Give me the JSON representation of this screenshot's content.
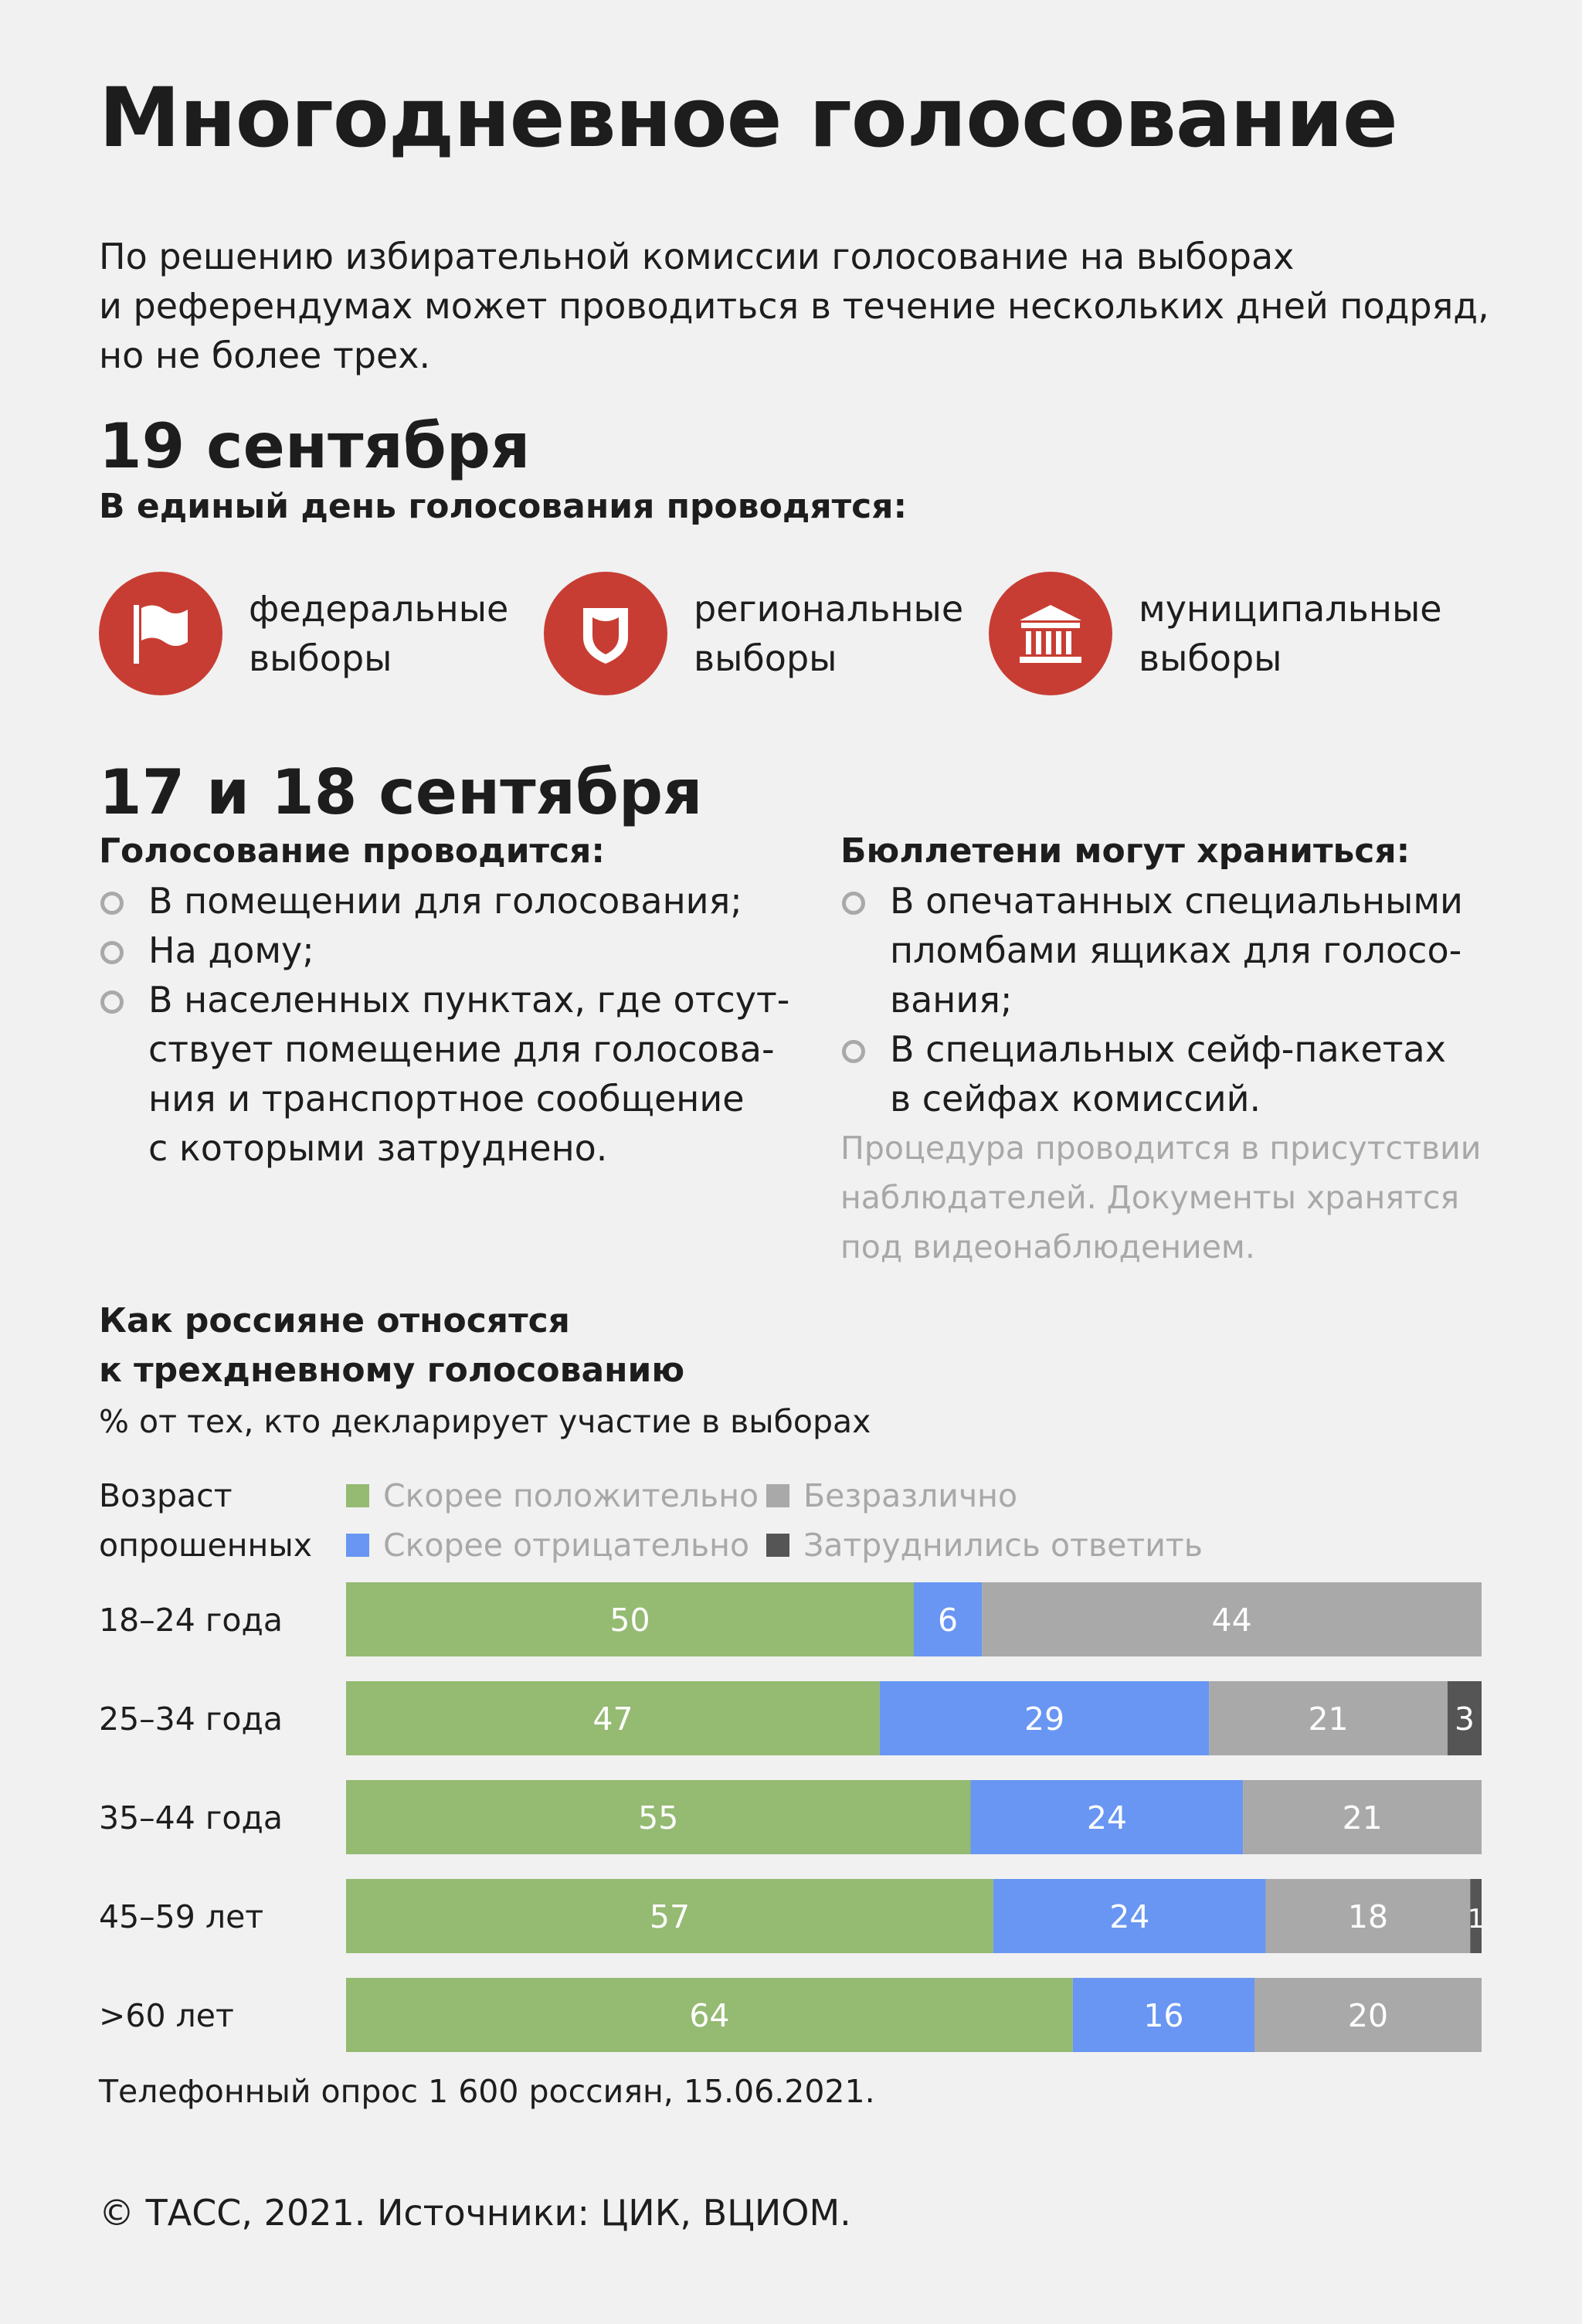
{
  "title": "Многодневное голосование",
  "intro": {
    "line1": "По решению избирательной комиссии голосование на выборах",
    "line2": "и референдумах может проводиться в течение нескольких дней подряд,",
    "line3": "но не более трех."
  },
  "day19": {
    "date": "19 сентября",
    "subtitle": "В единый день голосования проводятся:",
    "items": [
      {
        "icon": "flag-icon",
        "line1": "федеральные",
        "line2": "выборы"
      },
      {
        "icon": "shield-icon",
        "line1": "региональные",
        "line2": "выборы"
      },
      {
        "icon": "building-icon",
        "line1": "муниципальные",
        "line2": "выборы"
      }
    ]
  },
  "days17_18": {
    "date": "17 и 18 сентября",
    "voting": {
      "heading": "Голосование проводится:",
      "items": [
        [
          "В помещении для голосования;"
        ],
        [
          "На дому;"
        ],
        [
          "В населенных пунктах, где отсут-",
          "ствует помещение для голосова-",
          "ния и транспортное сообщение",
          "с которыми затруднено."
        ]
      ]
    },
    "storage": {
      "heading": "Бюллетени могут храниться:",
      "items": [
        [
          "В опечатанных специальными",
          "пломбами ящиках для голосо-",
          "вания;"
        ],
        [
          "В специальных сейф-пакетах",
          "в сейфах комиссий."
        ]
      ],
      "note": [
        "Процедура проводится в присутствии",
        "наблюдателей. Документы хранятся",
        "под видеонаблюдением."
      ]
    }
  },
  "chart_data": {
    "type": "bar",
    "orientation": "horizontal-stacked-100",
    "title_lines": [
      "Как россияне относятся",
      "к трехдневному голосованию"
    ],
    "subtitle": "% от тех, кто декларирует участие в выборах",
    "category_axis_label_lines": [
      "Возраст",
      "опрошенных"
    ],
    "categories": [
      "18–24 года",
      "25–34 года",
      "35–44 года",
      "45–59 лет",
      ">60 лет"
    ],
    "series": [
      {
        "name": "Скорее положительно",
        "color": "#95ba72",
        "values": [
          50,
          47,
          55,
          57,
          64
        ]
      },
      {
        "name": "Скорее отрицательно",
        "color": "#6896f2",
        "values": [
          6,
          29,
          24,
          24,
          16
        ]
      },
      {
        "name": "Безразлично",
        "color": "#a9a9a9",
        "values": [
          44,
          21,
          21,
          18,
          20
        ]
      },
      {
        "name": "Затруднились ответить",
        "color": "#555555",
        "values": [
          0,
          3,
          0,
          1,
          0
        ]
      }
    ],
    "xlim": [
      0,
      100
    ],
    "legend_position": "top"
  },
  "footnote": "Телефонный опрос 1 600 россиян, 15.06.2021.",
  "credit": "© ТАСС, 2021. Источники: ЦИК, ВЦИОМ."
}
